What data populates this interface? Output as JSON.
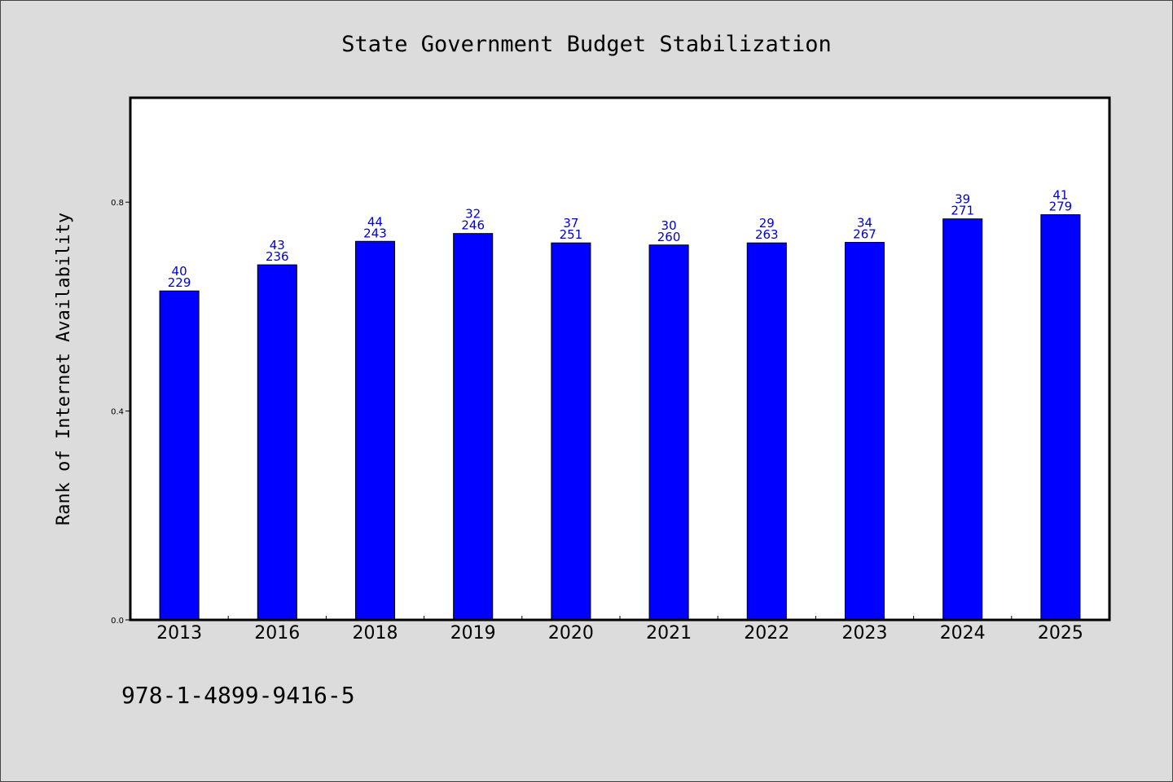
{
  "chart_data": {
    "type": "bar",
    "title": "State Government Budget Stabilization",
    "ylabel": "Rank of Internet Availability",
    "xlabel": "",
    "ylim": [
      0,
      1.0
    ],
    "yticks": [
      "0.0",
      "0.4",
      "0.8"
    ],
    "yticks_values": [
      0.0,
      0.4,
      0.8
    ],
    "categories": [
      "2013",
      "2016",
      "2018",
      "2019",
      "2020",
      "2021",
      "2022",
      "2023",
      "2024",
      "2025"
    ],
    "values": [
      0.63,
      0.68,
      0.725,
      0.74,
      0.722,
      0.718,
      0.722,
      0.723,
      0.768,
      0.776
    ],
    "data_labels_top": [
      "40",
      "43",
      "44",
      "32",
      "37",
      "30",
      "29",
      "34",
      "39",
      "41"
    ],
    "data_labels_bottom": [
      "229",
      "236",
      "243",
      "246",
      "251",
      "260",
      "263",
      "267",
      "271",
      "279"
    ],
    "colors": {
      "bar": "#0000ff",
      "bar_edge": "#000000",
      "data_label": "#0000cc",
      "plot_bg": "#ffffff",
      "figure_bg": "#dcdcdc"
    },
    "grid": false,
    "legend": "none"
  },
  "footer": {
    "isbn": "978-1-4899-9416-5"
  }
}
